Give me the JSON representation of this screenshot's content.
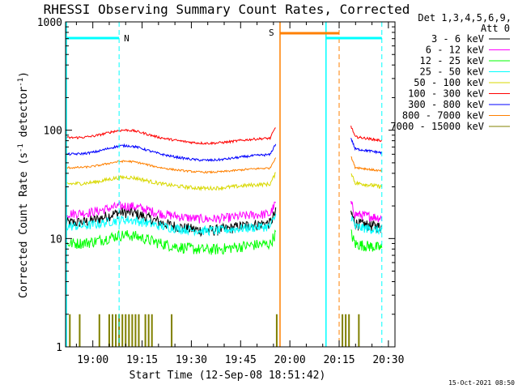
{
  "chart_data": {
    "type": "line",
    "title": "RHESSI Observing Summary Count Rates, Corrected",
    "xlabel": "Start Time (12-Sep-08 18:51:42)",
    "ylabel_main": "Corrected Count Rate (s",
    "ylabel_sup1": "-1",
    "ylabel_mid": " detector",
    "ylabel_sup2": "-1",
    "ylabel_end": ")",
    "y_scale": "log",
    "ylim": [
      1,
      1000
    ],
    "xlim": [
      "18:51:42",
      "20:32:00"
    ],
    "x_ticks": [
      "19:00",
      "19:15",
      "19:30",
      "19:45",
      "20:00",
      "20:15",
      "20:30"
    ],
    "y_ticks": [
      "1",
      "10",
      "100",
      "1000"
    ],
    "legend_header": [
      "Det 1,3,4,5,6,9,",
      "Att 0"
    ],
    "legend_placement": "right",
    "series": [
      {
        "name": "3 - 6 keV",
        "color": "#000000",
        "level_before": 14,
        "level_after": 14
      },
      {
        "name": "6 - 12 keV",
        "color": "#ff00ff",
        "level_before": 17,
        "level_after": 17
      },
      {
        "name": "12 - 25 keV",
        "color": "#00ff00",
        "level_before": 9,
        "level_after": 9
      },
      {
        "name": "25 - 50 keV",
        "color": "#00ffff",
        "level_before": 13,
        "level_after": 13
      },
      {
        "name": "50 - 100 keV",
        "color": "#d8d800",
        "level_before": 32,
        "level_after": 33
      },
      {
        "name": "100 - 300 keV",
        "color": "#ff0000",
        "level_before": 85,
        "level_after": 88
      },
      {
        "name": "300 - 800 keV",
        "color": "#0000ff",
        "level_before": 60,
        "level_after": 68
      },
      {
        "name": "800 - 7000 keV",
        "color": "#ff8000",
        "level_before": 45,
        "level_after": 46
      },
      {
        "name": "7000 - 15000 keV",
        "color": "#808000",
        "level_before": 1,
        "level_after": 1
      }
    ],
    "annotations": {
      "night_label": "N",
      "saa_label": "S",
      "night_bars": [
        [
          "18:51:42",
          "19:08"
        ],
        [
          "20:11",
          "20:28"
        ]
      ],
      "saa_bar": [
        "19:57",
        "20:15"
      ],
      "solid_lines": [
        {
          "time": "18:51:42",
          "color": "#00ffff"
        },
        {
          "time": "19:57",
          "color": "#ff8000"
        },
        {
          "time": "20:11",
          "color": "#00ffff"
        }
      ],
      "dashed_lines": [
        {
          "time": "19:08",
          "color": "#00ffff"
        },
        {
          "time": "20:15",
          "color": "#ff8000"
        },
        {
          "time": "20:28",
          "color": "#00ffff"
        }
      ],
      "data_gap": [
        "19:56",
        "20:18"
      ]
    },
    "footer_date": "15-Oct-2021 08:50"
  }
}
